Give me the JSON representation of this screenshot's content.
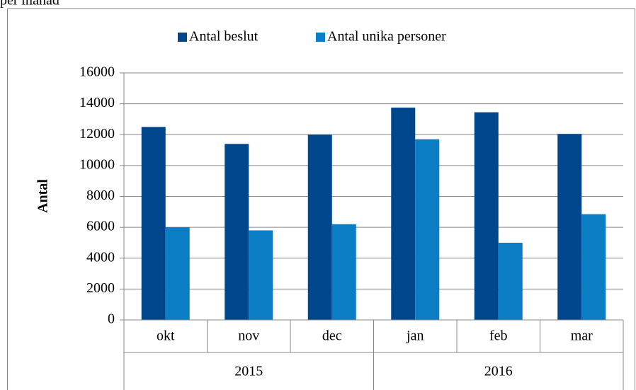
{
  "chart_data": {
    "type": "bar",
    "caption": "per månad",
    "ylabel": "Antal",
    "categories": [
      "okt",
      "nov",
      "dec",
      "jan",
      "feb",
      "mar"
    ],
    "x_groups": [
      "2015",
      "2016"
    ],
    "series": [
      {
        "name": "Antal beslut",
        "color": "#00468c",
        "values": [
          12500,
          11400,
          12000,
          13750,
          13450,
          12050
        ]
      },
      {
        "name": "Antal unika personer",
        "color": "#0a7dc5",
        "values": [
          6000,
          5800,
          6200,
          11700,
          5000,
          6850
        ]
      }
    ],
    "ylim": [
      0,
      16000
    ],
    "yticks": [
      0,
      2000,
      4000,
      6000,
      8000,
      10000,
      12000,
      14000,
      16000
    ],
    "grid": true,
    "legend": "top"
  }
}
